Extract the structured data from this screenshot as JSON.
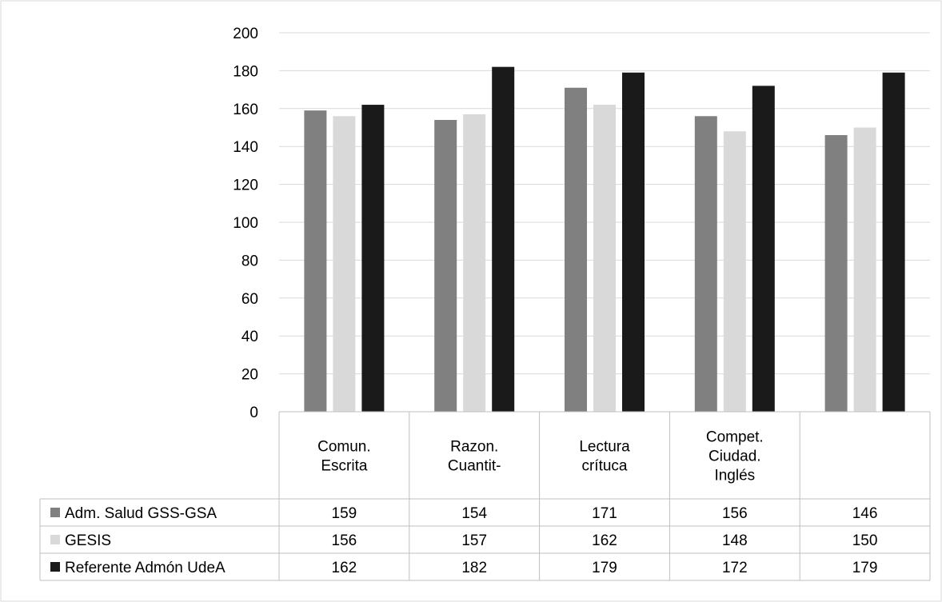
{
  "chart_data": {
    "type": "bar",
    "categories": [
      [
        "Comun.",
        "Escrita"
      ],
      [
        "Razon.",
        "Cuantit-"
      ],
      [
        "Lectura",
        "crítuca"
      ],
      [
        "Compet.",
        "Ciudad.",
        "Inglés"
      ],
      [
        ""
      ]
    ],
    "series": [
      {
        "name": "Adm. Salud GSS-GSA",
        "values": [
          159,
          154,
          171,
          156,
          146
        ],
        "color": "#808080"
      },
      {
        "name": "GESIS",
        "values": [
          156,
          157,
          162,
          148,
          150
        ],
        "color": "#d9d9d9"
      },
      {
        "name": "Referente Admón UdeA",
        "values": [
          162,
          182,
          179,
          172,
          179
        ],
        "color": "#1a1a1a"
      }
    ],
    "yticks": [
      0,
      20,
      40,
      60,
      80,
      100,
      120,
      140,
      160,
      180,
      200
    ],
    "ylim": [
      0,
      200
    ],
    "grid": true,
    "legend": "data-table-rows",
    "colors": {
      "grid": "#d9d9d9",
      "border": "#bfbfbf"
    }
  }
}
